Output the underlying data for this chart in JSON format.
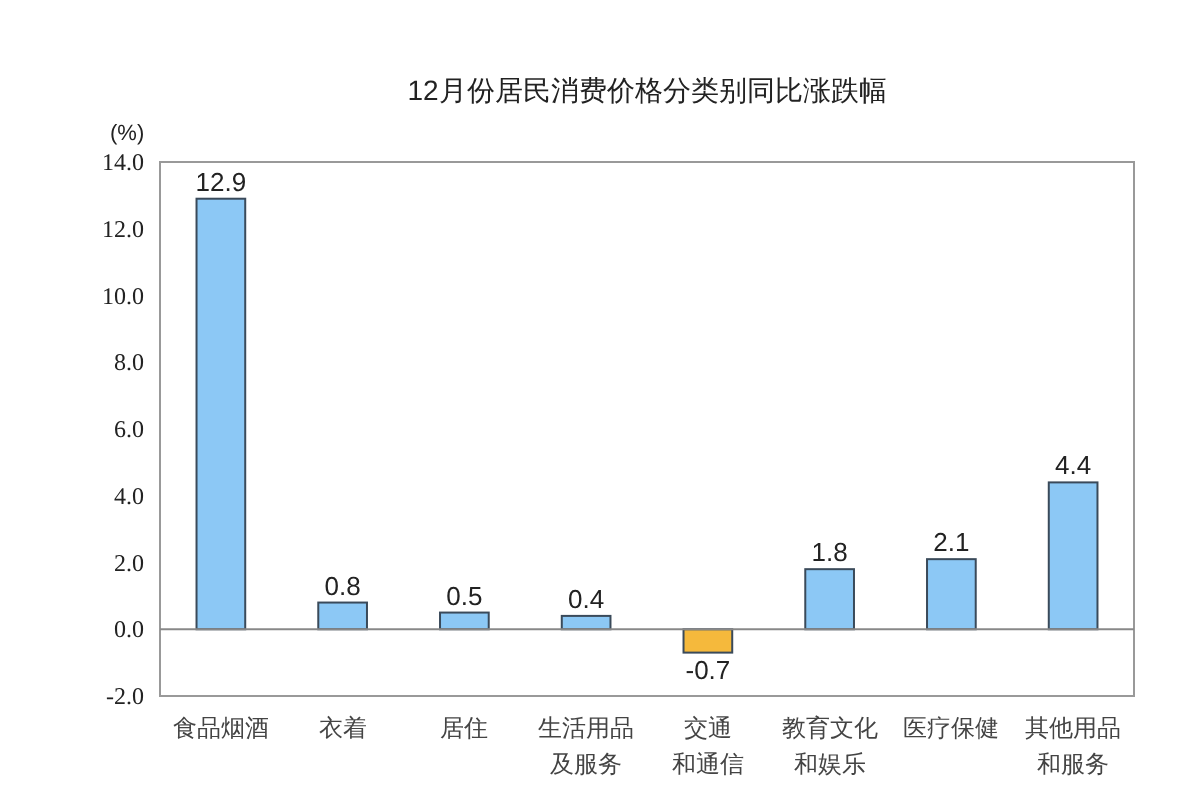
{
  "chart_data": {
    "type": "bar",
    "title": "12月份居民消费价格分类别同比涨跌幅",
    "ylabel": "(%)",
    "categories": [
      "食品烟酒",
      "衣着",
      "居住",
      "生活用品及服务",
      "交通和通信",
      "教育文化和娱乐",
      "医疗保健",
      "其他用品和服务"
    ],
    "values": [
      12.9,
      0.8,
      0.5,
      0.4,
      -0.7,
      1.8,
      2.1,
      4.4
    ],
    "colors": [
      "#8cc8f5",
      "#8cc8f5",
      "#8cc8f5",
      "#8cc8f5",
      "#f5b93c",
      "#8cc8f5",
      "#8cc8f5",
      "#8cc8f5"
    ],
    "ylim": [
      -2,
      14
    ],
    "yticks": [
      {
        "value": -2,
        "label": "-2.0"
      },
      {
        "value": 0,
        "label": "0.0"
      },
      {
        "value": 2,
        "label": "2.0"
      },
      {
        "value": 4,
        "label": "4.0"
      },
      {
        "value": 6,
        "label": "6.0"
      },
      {
        "value": 8,
        "label": "8.0"
      },
      {
        "value": 10,
        "label": "10.0"
      },
      {
        "value": 12,
        "label": "12.0"
      },
      {
        "value": 14,
        "label": "14.0"
      }
    ],
    "data_labels": true
  }
}
